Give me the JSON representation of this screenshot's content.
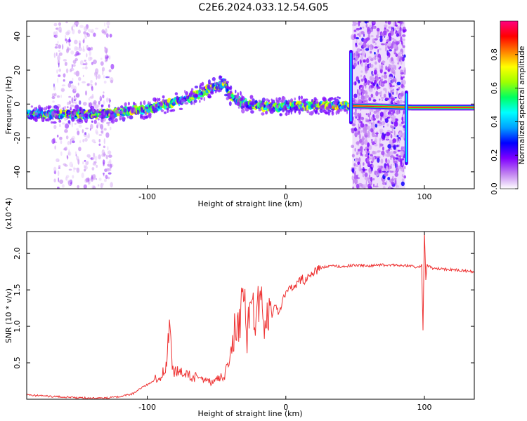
{
  "figure": {
    "title": "C2E6.2024.033.12.54.G05"
  },
  "chart_data": [
    {
      "type": "heatmap",
      "title": "C2E6.2024.033.12.54.G05",
      "xlabel": "Height of straight line (km)",
      "ylabel": "Frequency (Hz)",
      "xlim": [
        -187,
        136
      ],
      "ylim": [
        -50,
        49
      ],
      "xticks": [
        -100,
        0,
        100
      ],
      "xtick_labels": [
        "-100",
        "0",
        "100"
      ],
      "yticks": [
        -40,
        -20,
        0,
        20,
        40
      ],
      "ytick_labels": [
        "-40",
        "-20",
        "0",
        "20",
        "40"
      ],
      "colorbar": {
        "label": "Normalized spectral amplitude",
        "range": [
          0,
          1
        ],
        "ticks": [
          0.0,
          0.2,
          0.4,
          0.6,
          0.8
        ],
        "tick_labels": [
          "0.0",
          "0.2",
          "0.4",
          "0.6",
          "0.8"
        ],
        "colors": [
          "#ffffff",
          "#c080f0",
          "#8000ff",
          "#0000ff",
          "#00a0ff",
          "#00ffff",
          "#00ff60",
          "#a0ff00",
          "#ffff00",
          "#ff8000",
          "#ff0000",
          "#ff0080"
        ]
      },
      "ridge": {
        "x": [
          -187,
          -160,
          -140,
          -120,
          -110,
          -100,
          -90,
          -80,
          -70,
          -60,
          -52,
          -45,
          -40,
          -30,
          -20,
          -10,
          0,
          10,
          20,
          30,
          45,
          92,
          136
        ],
        "y": [
          -6,
          -6,
          -6,
          -5,
          -4,
          -3,
          -1,
          1,
          3,
          7,
          10,
          12,
          5,
          0,
          -1,
          -2,
          -1,
          -1,
          -1,
          -1,
          -1,
          -2,
          -2
        ]
      },
      "noise_bands": [
        {
          "x": [
            -168,
            -125
          ],
          "y": [
            -50,
            49
          ]
        },
        {
          "x": [
            48,
            86
          ],
          "y": [
            -50,
            49
          ]
        }
      ],
      "features": [
        {
          "x": 47,
          "y_range": [
            -12,
            32
          ]
        },
        {
          "x": 87,
          "y_range": [
            -36,
            8
          ]
        }
      ]
    },
    {
      "type": "line",
      "xlabel": "Height of straight line (km)",
      "ylabel": "SNR (10 * v/v)",
      "y_multiplier": "(x10^4)",
      "xlim": [
        -187,
        136
      ],
      "ylim": [
        0,
        23000
      ],
      "xticks": [
        -100,
        0,
        100
      ],
      "xtick_labels": [
        "-100",
        "0",
        "100"
      ],
      "yticks": [
        5000,
        10000,
        15000,
        20000
      ],
      "ytick_labels": [
        "0.5",
        "1.0",
        "1.5",
        "2.0"
      ],
      "series": [
        {
          "color": "#ee3333",
          "x": [
            -187,
            -170,
            -150,
            -130,
            -120,
            -110,
            -104,
            -100,
            -96,
            -90,
            -86,
            -84,
            -82,
            -80,
            -75,
            -70,
            -65,
            -60,
            -55,
            -50,
            -45,
            -42,
            -40,
            -38,
            -36,
            -34,
            -32,
            -30,
            -28,
            -26,
            -24,
            -22,
            -20,
            -18,
            -16,
            -14,
            -12,
            -10,
            -8,
            -6,
            -4,
            -2,
            0,
            2,
            4,
            6,
            8,
            10,
            12,
            14,
            16,
            18,
            20,
            22,
            25,
            30,
            35,
            40,
            50,
            60,
            70,
            80,
            90,
            95,
            98,
            99,
            100,
            101,
            102,
            105,
            110,
            120,
            130,
            136
          ],
          "y": [
            600,
            400,
            200,
            150,
            300,
            800,
            1600,
            2000,
            2500,
            3300,
            4600,
            11500,
            4000,
            3800,
            3500,
            3200,
            3000,
            2500,
            2400,
            2600,
            3200,
            4200,
            6000,
            8000,
            11000,
            9000,
            12000,
            14000,
            8500,
            12000,
            14500,
            9500,
            13000,
            14000,
            10000,
            13000,
            11000,
            11500,
            13500,
            12000,
            12500,
            14000,
            14500,
            14800,
            15200,
            15500,
            15800,
            16200,
            16500,
            16300,
            16800,
            17000,
            17300,
            17600,
            18000,
            18200,
            18300,
            18200,
            18400,
            18300,
            18400,
            18400,
            18300,
            18100,
            18400,
            9400,
            23000,
            16500,
            18400,
            18000,
            17900,
            17800,
            17600,
            17500
          ]
        }
      ]
    }
  ]
}
